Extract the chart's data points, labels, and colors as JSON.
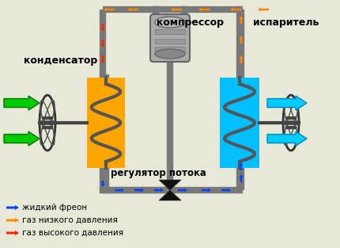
{
  "bg_color": "#e8e8d8",
  "condenser_label": "конденсатор",
  "compressor_label": "компрессор",
  "evaporator_label": "испаритель",
  "regulator_label": "регулятор потока",
  "legend_liquid": "жидкий фреон",
  "legend_low": "газ низкого давления",
  "legend_high": "газ высокого давления",
  "pipe_color": "#787878",
  "condenser_bg": "#FFA500",
  "evaporator_bg": "#00BFFF",
  "coil_color": "#555555",
  "pipe_lw": 6,
  "coil_lw": 3
}
